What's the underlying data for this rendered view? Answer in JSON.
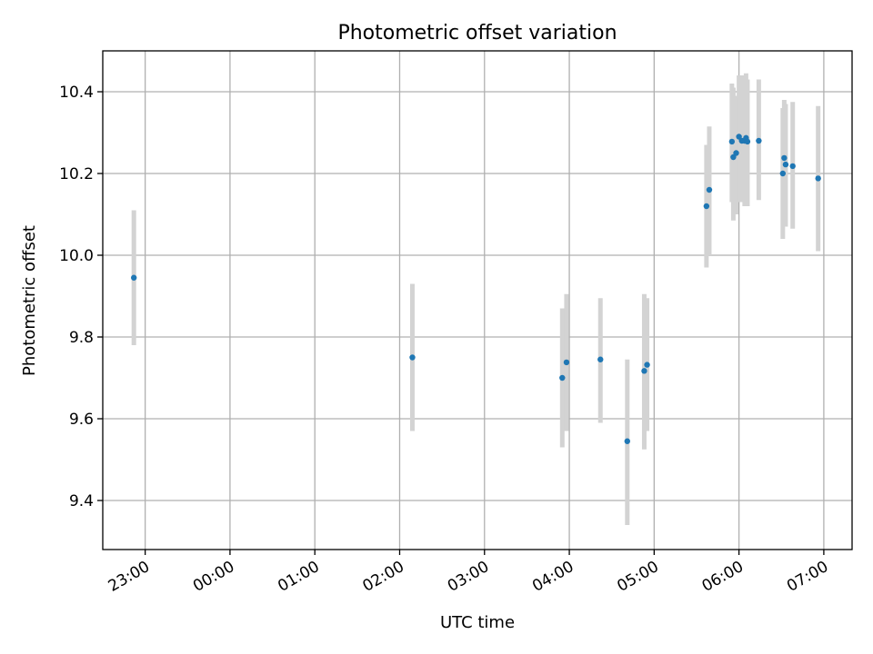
{
  "chart_data": {
    "type": "scatter",
    "title": "Photometric offset variation",
    "xlabel": "UTC time",
    "ylabel": "Photometric offset",
    "xlim": [
      "22:30",
      "07:20"
    ],
    "ylim": [
      9.28,
      10.5
    ],
    "x_ticks": [
      "23:00",
      "00:00",
      "01:00",
      "02:00",
      "03:00",
      "04:00",
      "05:00",
      "06:00",
      "07:00"
    ],
    "y_ticks": [
      "9.4",
      "9.6",
      "9.8",
      "10.0",
      "10.2",
      "10.4"
    ],
    "grid": true,
    "colors": {
      "marker": "#1f77b4",
      "errorbar": "#d3d3d3"
    },
    "points": [
      {
        "time": "22:52",
        "y": 9.945,
        "low": 9.78,
        "high": 10.11
      },
      {
        "time": "02:09",
        "y": 9.75,
        "low": 9.57,
        "high": 9.93
      },
      {
        "time": "03:55",
        "y": 9.7,
        "low": 9.53,
        "high": 9.87
      },
      {
        "time": "03:58",
        "y": 9.738,
        "low": 9.57,
        "high": 9.905
      },
      {
        "time": "04:22",
        "y": 9.745,
        "low": 9.59,
        "high": 9.895
      },
      {
        "time": "04:41",
        "y": 9.545,
        "low": 9.34,
        "high": 9.745
      },
      {
        "time": "04:53",
        "y": 9.717,
        "low": 9.525,
        "high": 9.905
      },
      {
        "time": "04:55",
        "y": 9.732,
        "low": 9.57,
        "high": 9.895
      },
      {
        "time": "05:37",
        "y": 10.12,
        "low": 9.97,
        "high": 10.27
      },
      {
        "time": "05:39",
        "y": 10.16,
        "low": 10.0,
        "high": 10.315
      },
      {
        "time": "05:55",
        "y": 10.278,
        "low": 10.13,
        "high": 10.42
      },
      {
        "time": "05:56",
        "y": 10.24,
        "low": 10.085,
        "high": 10.41
      },
      {
        "time": "05:58",
        "y": 10.25,
        "low": 10.1,
        "high": 10.39
      },
      {
        "time": "06:00",
        "y": 10.29,
        "low": 10.13,
        "high": 10.44
      },
      {
        "time": "06:02",
        "y": 10.28,
        "low": 10.13,
        "high": 10.44
      },
      {
        "time": "06:04",
        "y": 10.28,
        "low": 10.12,
        "high": 10.43
      },
      {
        "time": "06:05",
        "y": 10.287,
        "low": 10.12,
        "high": 10.445
      },
      {
        "time": "06:06",
        "y": 10.278,
        "low": 10.12,
        "high": 10.43
      },
      {
        "time": "06:14",
        "y": 10.28,
        "low": 10.135,
        "high": 10.43
      },
      {
        "time": "06:31",
        "y": 10.2,
        "low": 10.04,
        "high": 10.36
      },
      {
        "time": "06:32",
        "y": 10.238,
        "low": 10.08,
        "high": 10.38
      },
      {
        "time": "06:33",
        "y": 10.222,
        "low": 10.07,
        "high": 10.37
      },
      {
        "time": "06:38",
        "y": 10.218,
        "low": 10.065,
        "high": 10.375
      },
      {
        "time": "06:56",
        "y": 10.188,
        "low": 10.01,
        "high": 10.365
      }
    ]
  }
}
